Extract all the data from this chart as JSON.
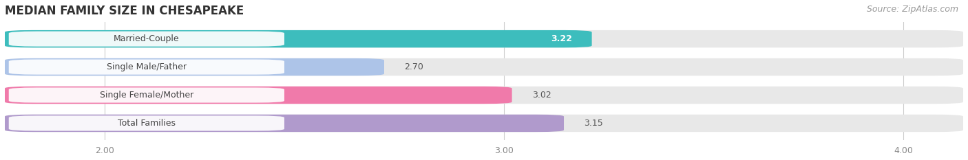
{
  "title": "MEDIAN FAMILY SIZE IN CHESAPEAKE",
  "source": "Source: ZipAtlas.com",
  "categories": [
    "Married-Couple",
    "Single Male/Father",
    "Single Female/Mother",
    "Total Families"
  ],
  "values": [
    3.22,
    2.7,
    3.02,
    3.15
  ],
  "bar_colors": [
    "#3dbdbd",
    "#adc4e8",
    "#f07aaa",
    "#b09acc"
  ],
  "bar_bg_color": "#e8e8e8",
  "xlim": [
    1.75,
    4.15
  ],
  "xticks": [
    2.0,
    3.0,
    4.0
  ],
  "xtick_labels": [
    "2.00",
    "3.00",
    "4.00"
  ],
  "bg_color": "#ffffff",
  "bar_height": 0.62,
  "label_bg_color": "#ffffff",
  "value_label_color_inside": "#ffffff",
  "value_label_color_outside": "#555555",
  "title_color": "#333333",
  "source_color": "#999999",
  "title_fontsize": 12,
  "label_fontsize": 9,
  "value_fontsize": 9,
  "tick_fontsize": 9,
  "source_fontsize": 9,
  "grid_color": "#cccccc",
  "label_text_color": "#444444"
}
